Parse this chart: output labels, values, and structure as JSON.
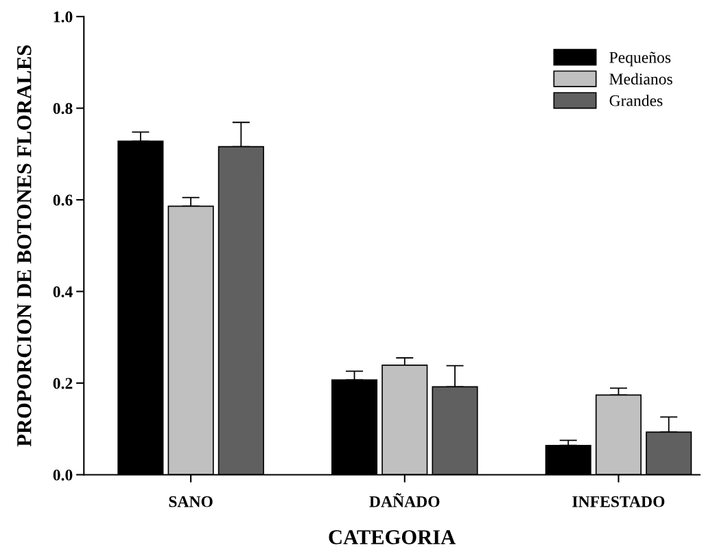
{
  "chart_data": {
    "type": "bar",
    "xlabel": "CATEGORIA",
    "ylabel": "PROPORCION DE BOTONES FLORALES",
    "categories": [
      "SANO",
      "DAÑADO",
      "INFESTADO"
    ],
    "series": [
      {
        "name": "Pequeños",
        "color": "#000000",
        "values": [
          0.728,
          0.207,
          0.064
        ],
        "errors": [
          [
            0.728,
            0.748
          ],
          [
            0.207,
            0.226
          ],
          [
            0.064,
            0.075
          ]
        ]
      },
      {
        "name": "Medianos",
        "color": "#c0c0c0",
        "values": [
          0.586,
          0.239,
          0.174
        ],
        "errors": [
          [
            0.586,
            0.605
          ],
          [
            0.239,
            0.255
          ],
          [
            0.174,
            0.189
          ]
        ]
      },
      {
        "name": "Grandes",
        "color": "#606060",
        "values": [
          0.716,
          0.192,
          0.093
        ],
        "errors": [
          [
            0.716,
            0.769
          ],
          [
            0.192,
            0.238
          ],
          [
            0.093,
            0.126
          ]
        ]
      }
    ],
    "ylim": [
      0,
      1.0
    ],
    "yticks": [
      {
        "value": 0,
        "label": "0.0"
      },
      {
        "value": 0.2,
        "label": "0.2"
      },
      {
        "value": 0.4,
        "label": "0.4"
      },
      {
        "value": 0.6,
        "label": "0.6"
      },
      {
        "value": 0.8,
        "label": "0.8"
      },
      {
        "value": 1.0,
        "label": "1.0"
      }
    ],
    "grid": false,
    "legend": "top right"
  }
}
